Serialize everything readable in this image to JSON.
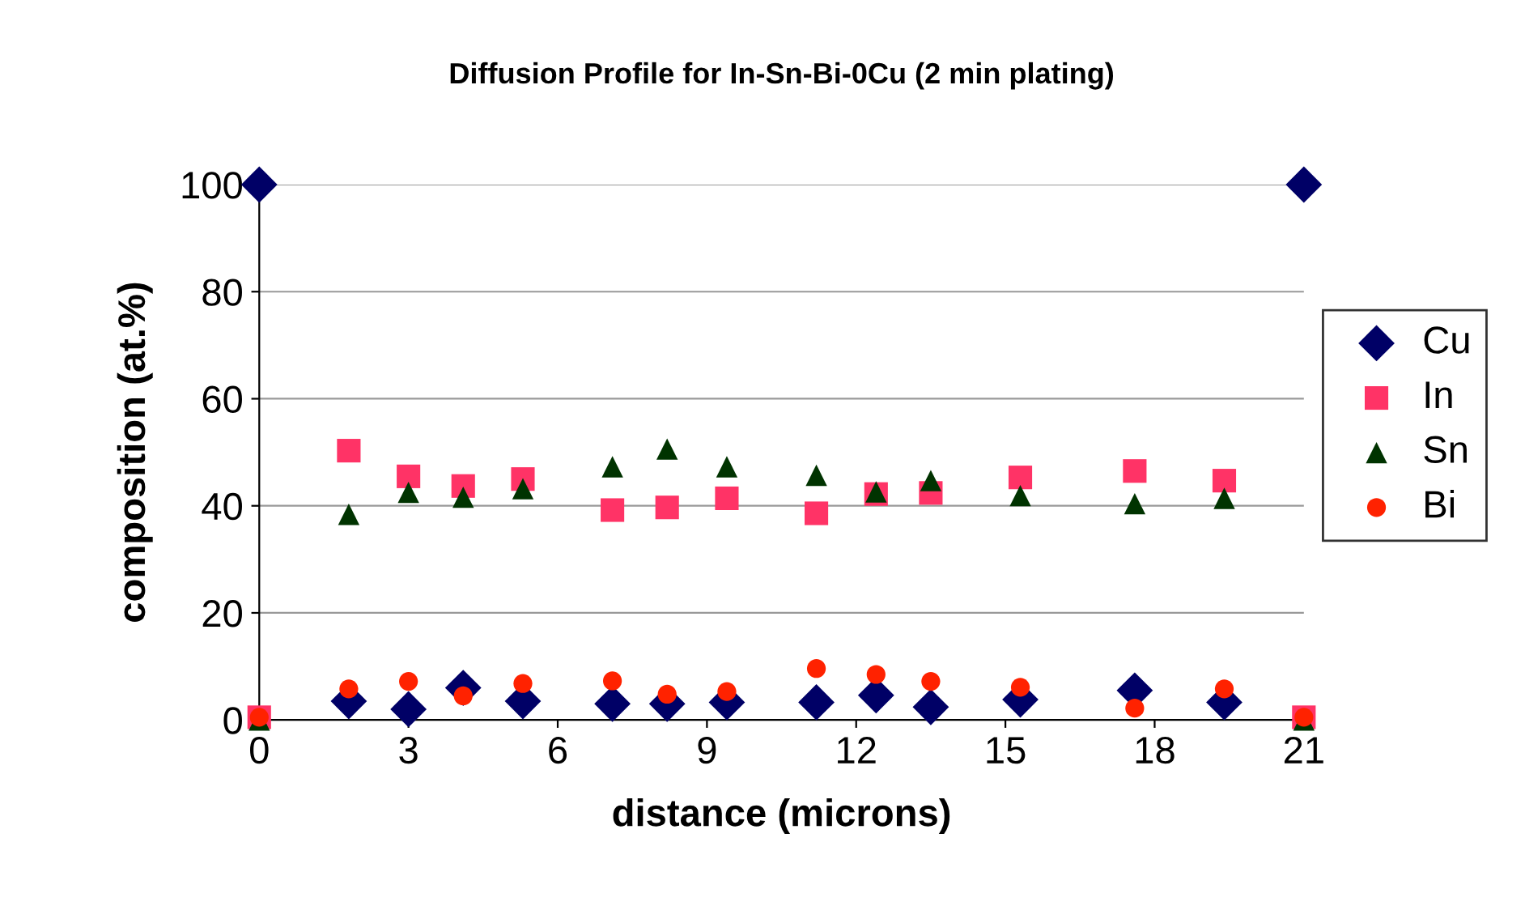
{
  "chart_data": {
    "type": "scatter",
    "title": "Diffusion Profile for In-Sn-Bi-0Cu (2 min plating)",
    "xlabel": "distance (microns)",
    "ylabel": "composition (at.%)",
    "x": [
      0,
      1.8,
      3.0,
      4.1,
      5.3,
      7.1,
      8.2,
      9.4,
      11.2,
      12.4,
      13.5,
      15.3,
      17.6,
      19.4,
      21
    ],
    "series": [
      {
        "name": "Cu",
        "color": "#000066",
        "marker": "diamond",
        "values": [
          100,
          3.5,
          2,
          6,
          3.5,
          3,
          3,
          3.3,
          3.3,
          4.6,
          2.4,
          3.8,
          5.5,
          3.3,
          100
        ]
      },
      {
        "name": "In",
        "color": "#ff3366",
        "marker": "square",
        "values": [
          0.5,
          50.3,
          45.5,
          43.7,
          45,
          39.2,
          39.7,
          41.4,
          38.6,
          42.2,
          42.4,
          45.3,
          46.5,
          44.7,
          0.5
        ]
      },
      {
        "name": "Sn",
        "color": "#003300",
        "marker": "triangle",
        "values": [
          0,
          38.4,
          42.5,
          41.6,
          43.2,
          47.3,
          50.6,
          47.3,
          45.7,
          42.6,
          44.7,
          41.9,
          40.4,
          41.4,
          0
        ]
      },
      {
        "name": "Bi",
        "color": "#ff2200",
        "marker": "circle",
        "values": [
          0.5,
          5.8,
          7.2,
          4.5,
          6.8,
          7.3,
          4.8,
          5.3,
          9.6,
          8.5,
          7.2,
          6.1,
          2.2,
          5.8,
          0.5
        ]
      }
    ],
    "xlim": [
      0,
      21
    ],
    "xticks": [
      0,
      3,
      6,
      9,
      12,
      15,
      18,
      21
    ],
    "ylim": [
      0,
      100
    ],
    "yticks": [
      0,
      20,
      40,
      60,
      80,
      100
    ],
    "grid": "y",
    "legend": "right"
  }
}
